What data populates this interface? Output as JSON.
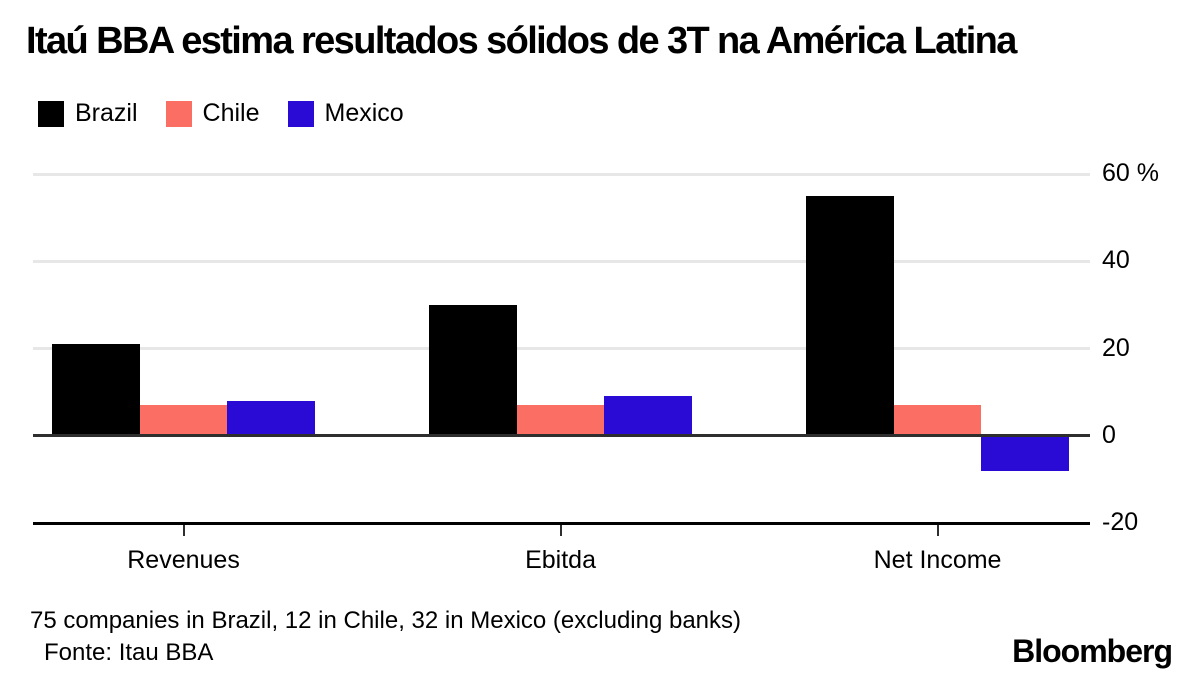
{
  "title": "Itaú BBA estima resultados sólidos de 3T na América Latina",
  "chart_data": {
    "type": "bar",
    "categories": [
      "Revenues",
      "Ebitda",
      "Net Income"
    ],
    "series": [
      {
        "name": "Brazil",
        "color": "#000000",
        "values": [
          21,
          30,
          55
        ]
      },
      {
        "name": "Chile",
        "color": "#FA6E64",
        "values": [
          7,
          7,
          7
        ]
      },
      {
        "name": "Mexico",
        "color": "#2A0BD6",
        "values": [
          8,
          9,
          -8
        ]
      }
    ],
    "unit": "%",
    "ylim": [
      -20,
      60
    ],
    "yticks": [
      {
        "value": 60,
        "label": "60 %"
      },
      {
        "value": 40,
        "label": "40"
      },
      {
        "value": 20,
        "label": "20"
      },
      {
        "value": 0,
        "label": "0"
      },
      {
        "value": -20,
        "label": "-20"
      }
    ],
    "grid": true,
    "legend_position": "top-left"
  },
  "footnote": "75 companies in Brazil, 12 in Chile, 32 in Mexico (excluding banks)",
  "source": "Fonte: Itau BBA",
  "brand": "Bloomberg"
}
